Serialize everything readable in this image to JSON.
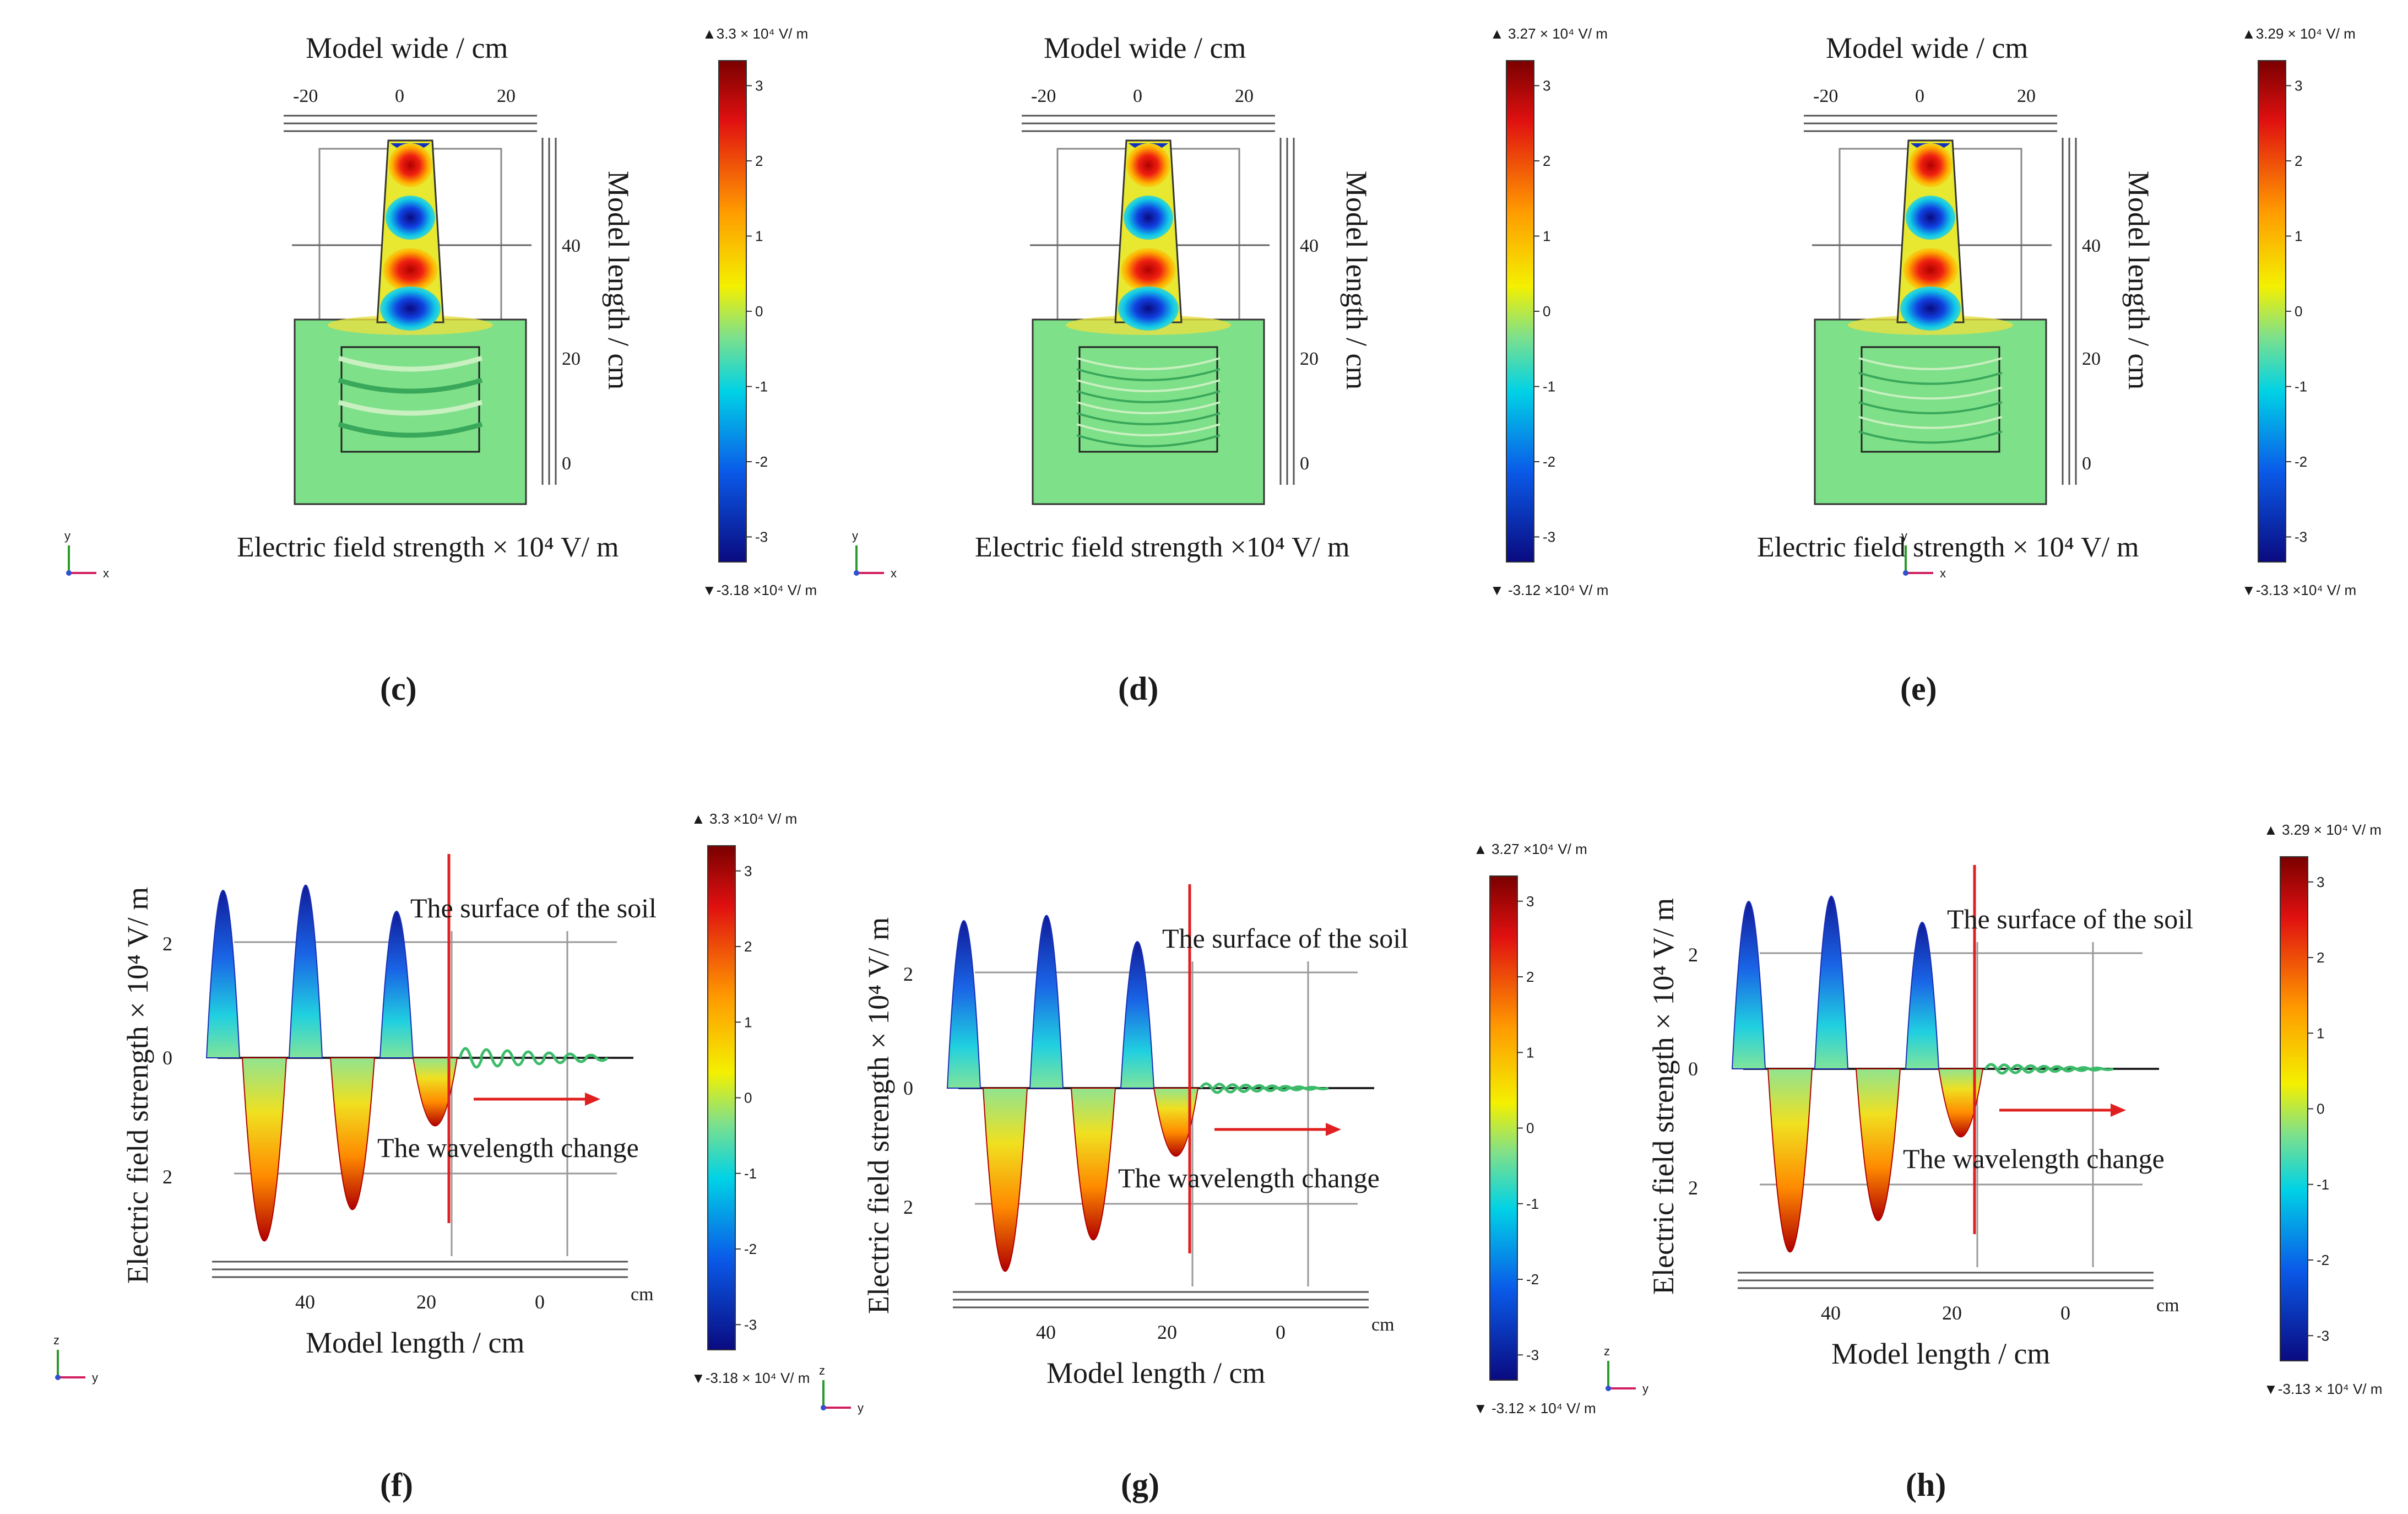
{
  "colors": {
    "field_positive": "#d7191c",
    "field_negative": "#1a2fb8",
    "field_zero": "#7fe08a",
    "annotation": "#e02020",
    "frame": "#555555"
  },
  "top_panels": [
    {
      "label": "(c)",
      "x_axis_title": "Model wide / cm",
      "x_ticks": [
        "-20",
        "0",
        "20"
      ],
      "y_axis_title": "Model length / cm",
      "y_ticks": [
        "40",
        "20",
        "0"
      ],
      "caption": "Electric field strength × 10⁴ V/ m",
      "colorbar": {
        "max_label": "▲3.3 × 10⁴ V/ m",
        "min_label": "▼-3.18 ×10⁴ V/ m",
        "ticks": [
          "3",
          "2",
          "1",
          "0",
          "-1",
          "-2",
          "-3"
        ]
      },
      "soil_wave_count": 4
    },
    {
      "label": "(d)",
      "x_axis_title": "Model wide / cm",
      "x_ticks": [
        "-20",
        "0",
        "20"
      ],
      "y_axis_title": "Model length / cm",
      "y_ticks": [
        "40",
        "20",
        "0"
      ],
      "caption": "Electric field strength ×10⁴ V/ m",
      "colorbar": {
        "max_label": "▲ 3.27 × 10⁴ V/ m",
        "min_label": "▼ -3.12 ×10⁴ V/ m",
        "ticks": [
          "3",
          "2",
          "1",
          "0",
          "-1",
          "-2",
          "-3"
        ]
      },
      "soil_wave_count": 8
    },
    {
      "label": "(e)",
      "x_axis_title": "Model wide / cm",
      "x_ticks": [
        "-20",
        "0",
        "20"
      ],
      "y_axis_title": "Model length / cm",
      "y_ticks": [
        "40",
        "20",
        "0"
      ],
      "caption": "Electric field strength × 10⁴ V/ m",
      "colorbar": {
        "max_label": "▲3.29 × 10⁴ V/ m",
        "min_label": "▼-3.13 ×10⁴ V/ m",
        "ticks": [
          "3",
          "2",
          "1",
          "0",
          "-1",
          "-2",
          "-3"
        ]
      },
      "soil_wave_count": 6
    }
  ],
  "bottom_panels": [
    {
      "label": "(f)",
      "y_axis_title": "Electric field strength × 10⁴ V/ m",
      "y_ticks": [
        "2",
        "0",
        "2"
      ],
      "x_axis_title": "Model length / cm",
      "x_ticks": [
        "40",
        "20",
        "0"
      ],
      "x_unit": "cm",
      "surface_text": "The surface of the soil",
      "wavelength_text": "The wavelength change",
      "colorbar": {
        "max_label": "▲ 3.3 ×10⁴ V/ m",
        "min_label": "▼-3.18 × 10⁴ V/ m",
        "ticks": [
          "3",
          "2",
          "1",
          "0",
          "-1",
          "-2",
          "-3"
        ]
      }
    },
    {
      "label": "(g)",
      "y_axis_title": "Electric field strength × 10⁴ V/ m",
      "y_ticks": [
        "2",
        "0",
        "2"
      ],
      "x_axis_title": "Model length / cm",
      "x_ticks": [
        "40",
        "20",
        "0"
      ],
      "x_unit": "cm",
      "surface_text": "The surface of the soil",
      "wavelength_text": "The wavelength change",
      "colorbar": {
        "max_label": "▲ 3.27 ×10⁴ V/ m",
        "min_label": "▼ -3.12 × 10⁴ V/ m",
        "ticks": [
          "3",
          "2",
          "1",
          "0",
          "-1",
          "-2",
          "-3"
        ]
      }
    },
    {
      "label": "(h)",
      "y_axis_title": "Electric field strength × 10⁴ V/ m",
      "y_ticks": [
        "2",
        "0",
        "2"
      ],
      "x_axis_title": "Model length / cm",
      "x_ticks": [
        "40",
        "20",
        "0"
      ],
      "x_unit": "cm",
      "surface_text": "The surface of the soil",
      "wavelength_text": "The wavelength change",
      "colorbar": {
        "max_label": "▲ 3.29 × 10⁴ V/ m",
        "min_label": "▼-3.13 × 10⁴ V/ m",
        "ticks": [
          "3",
          "2",
          "1",
          "0",
          "-1",
          "-2",
          "-3"
        ]
      }
    }
  ],
  "triad": {
    "x": "x",
    "y": "y",
    "z": "z"
  }
}
